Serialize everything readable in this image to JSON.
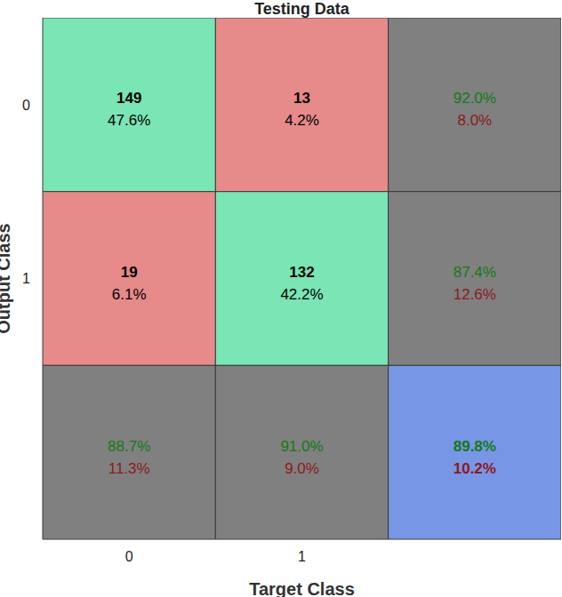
{
  "chart_data": {
    "type": "heatmap",
    "title": "Testing Data",
    "x_label": "Target Class",
    "y_label": "Output Class",
    "x_categories": [
      "0",
      "1"
    ],
    "y_categories": [
      "0",
      "1"
    ],
    "cells": [
      [
        149,
        13
      ],
      [
        19,
        132
      ]
    ],
    "cell_percents": {
      "values": [
        [
          47.6,
          4.2
        ],
        [
          6.1,
          42.2
        ]
      ],
      "value_labels": [
        [
          "47.6%",
          "4.2%"
        ],
        [
          "6.1%",
          "42.2%"
        ]
      ]
    },
    "row_summary": {
      "values": [
        [
          92.0,
          8.0
        ],
        [
          87.4,
          12.6
        ]
      ],
      "value_labels": [
        [
          "92.0%",
          "8.0%"
        ],
        [
          "87.4%",
          "12.6%"
        ]
      ]
    },
    "column_summary": {
      "values": [
        [
          88.7,
          11.3
        ],
        [
          91.0,
          9.0
        ]
      ],
      "value_labels": [
        [
          "88.7%",
          "11.3%"
        ],
        [
          "91.0%",
          "9.0%"
        ]
      ]
    },
    "overall": {
      "values": [
        89.8,
        10.2
      ],
      "value_labels": [
        "89.8%",
        "10.2%"
      ]
    }
  }
}
